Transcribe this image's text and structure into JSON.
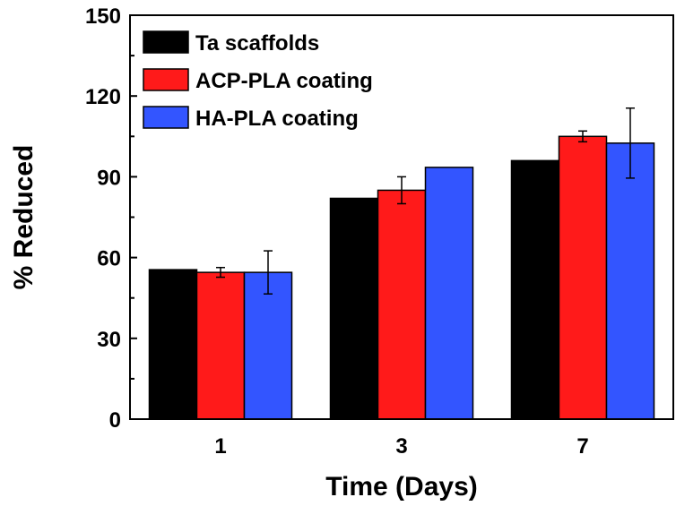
{
  "chart_data": {
    "type": "bar",
    "title": "",
    "xlabel": "Time (Days)",
    "ylabel": "% Reduced",
    "ylim": [
      0,
      150
    ],
    "yticks": [
      0,
      30,
      60,
      90,
      120,
      150
    ],
    "categories": [
      "1",
      "3",
      "7"
    ],
    "series": [
      {
        "name": "Ta scaffolds",
        "color": "#000000",
        "values": [
          55.5,
          82,
          96
        ],
        "errors": [
          0,
          0,
          0
        ]
      },
      {
        "name": "ACP-PLA coating",
        "color": "#ff1a1a",
        "values": [
          54.5,
          85,
          105
        ],
        "errors": [
          1.8,
          5,
          2
        ]
      },
      {
        "name": "HA-PLA coating",
        "color": "#3355ff",
        "values": [
          54.5,
          93.5,
          102.5
        ],
        "errors": [
          8,
          0,
          13
        ]
      }
    ],
    "legend_position": "top-left",
    "grid": false
  }
}
